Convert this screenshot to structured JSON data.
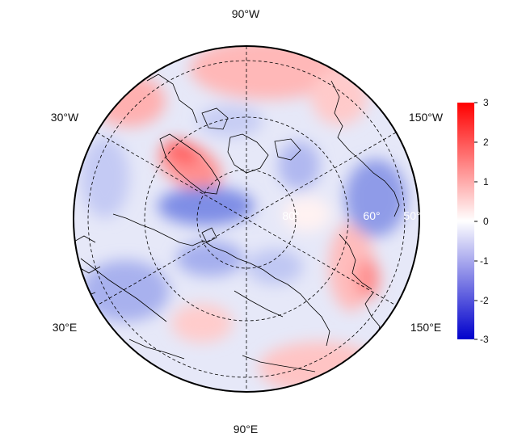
{
  "map": {
    "projection": "north-polar-stereographic",
    "longitude_labels": {
      "top": "90°W",
      "bottom": "90°E",
      "upper_left": "30°W",
      "upper_right": "150°W",
      "lower_left": "30°E",
      "lower_right": "150°E"
    },
    "latitude_labels": [
      "80°",
      "60°",
      "50°"
    ],
    "grid_style": "dashed",
    "field_colors": {
      "negative": "#0000cc",
      "zero": "#ffffff",
      "positive": "#ff0000"
    }
  },
  "colorbar": {
    "min": -3,
    "max": 3,
    "ticks": [
      "3",
      "2",
      "1",
      "0",
      "-1",
      "-2",
      "-3"
    ],
    "colors": {
      "top": "#ff0000",
      "middle": "#ffffff",
      "bottom": "#0000cc"
    }
  }
}
